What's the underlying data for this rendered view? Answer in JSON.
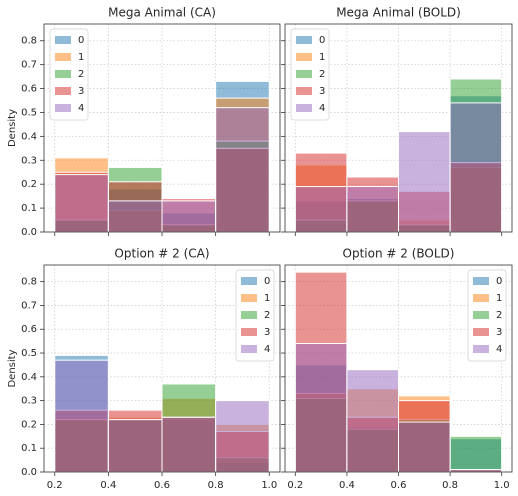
{
  "chart_data": [
    {
      "type": "histogram",
      "title": "Mega Animal (CA)",
      "ylabel": "Density",
      "bins": [
        0.2,
        0.4,
        0.6,
        0.8,
        {
          "value": 1,
          "label": "1.0"
        }
      ],
      "xlim": [
        0.16,
        1.04
      ],
      "ylim": [
        0,
        0.87
      ],
      "xticks": [
        0.2,
        0.4,
        0.6,
        0.8,
        1
      ],
      "yticks": [
        {
          "value": 0,
          "label": "0.0"
        },
        0.1,
        0.2,
        0.3,
        0.4,
        0.5,
        0.6,
        0.7,
        0.8
      ],
      "grid": true,
      "legend": "upper left",
      "series": [
        {
          "name": "0",
          "color": "#1f77b4",
          "values": [
            0.05,
            0.18,
            0.08,
            0.63
          ]
        },
        {
          "name": "1",
          "color": "#ff7f0e",
          "values": [
            0.31,
            0.09,
            0.03,
            0.56
          ]
        },
        {
          "name": "2",
          "color": "#2ca02c",
          "values": [
            0.05,
            0.27,
            0.03,
            0.38
          ]
        },
        {
          "name": "3",
          "color": "#d62728",
          "values": [
            0.25,
            0.21,
            0.14,
            0.35
          ]
        },
        {
          "name": "4",
          "color": "#9467bd",
          "values": [
            0.24,
            0.13,
            0.13,
            0.52
          ]
        }
      ]
    },
    {
      "type": "histogram",
      "title": "Mega Animal (BOLD)",
      "bins": [
        0.2,
        0.4,
        0.6,
        0.8,
        {
          "value": 1,
          "label": "1.0"
        }
      ],
      "xlim": [
        0.16,
        1.04
      ],
      "ylim": [
        0,
        0.87
      ],
      "xticks": [
        0.2,
        0.4,
        0.6,
        0.8,
        1
      ],
      "yticks": [
        0,
        0.1,
        0.2,
        0.3,
        0.4,
        0.5,
        0.6,
        0.7,
        0.8
      ],
      "grid": true,
      "legend": "upper left",
      "series": [
        {
          "name": "0",
          "color": "#1f77b4",
          "values": [
            0.13,
            0.14,
            0.03,
            0.57
          ]
        },
        {
          "name": "1",
          "color": "#ff7f0e",
          "values": [
            0.28,
            0.13,
            0.05,
            0.27
          ]
        },
        {
          "name": "2",
          "color": "#2ca02c",
          "values": [
            0.05,
            0.13,
            0.03,
            0.64
          ]
        },
        {
          "name": "3",
          "color": "#d62728",
          "values": [
            0.33,
            0.23,
            0.17,
            0.29
          ]
        },
        {
          "name": "4",
          "color": "#9467bd",
          "values": [
            0.19,
            0.19,
            0.42,
            0.54
          ]
        }
      ]
    },
    {
      "type": "histogram",
      "title": "Option # 2 (CA)",
      "ylabel": "Density",
      "bins": [
        0.2,
        0.4,
        0.6,
        0.8,
        {
          "value": 1,
          "label": "1.0"
        }
      ],
      "xlim": [
        0.16,
        1.04
      ],
      "ylim": [
        0,
        0.87
      ],
      "xticks": [
        0.2,
        0.4,
        0.6,
        0.8,
        {
          "value": 1,
          "label": "1.0"
        }
      ],
      "yticks": [
        {
          "value": 0,
          "label": "0.0"
        },
        0.1,
        0.2,
        0.3,
        0.4,
        0.5,
        0.6,
        0.7,
        0.8
      ],
      "grid": true,
      "legend": "upper right",
      "series": [
        {
          "name": "0",
          "color": "#1f77b4",
          "values": [
            0.49,
            0.22,
            0.22,
            0.04
          ]
        },
        {
          "name": "1",
          "color": "#ff7f0e",
          "values": [
            0.22,
            0.23,
            0.31,
            0.2
          ]
        },
        {
          "name": "2",
          "color": "#2ca02c",
          "values": [
            0.22,
            0.22,
            0.37,
            0.06
          ]
        },
        {
          "name": "3",
          "color": "#d62728",
          "values": [
            0.26,
            0.26,
            0.23,
            0.17
          ]
        },
        {
          "name": "4",
          "color": "#9467bd",
          "values": [
            0.47,
            0.22,
            0.23,
            0.3
          ]
        }
      ]
    },
    {
      "type": "histogram",
      "title": "Option # 2 (BOLD)",
      "bins": [
        0.2,
        0.4,
        0.6,
        0.8,
        {
          "value": 1,
          "label": "1.0"
        }
      ],
      "xlim": [
        0.16,
        1.04
      ],
      "ylim": [
        0,
        0.87
      ],
      "xticks": [
        0.2,
        0.4,
        0.6,
        0.8,
        {
          "value": 1,
          "label": "1.0"
        }
      ],
      "yticks": [
        0,
        0.1,
        0.2,
        0.3,
        0.4,
        0.5,
        0.6,
        0.7,
        0.8
      ],
      "grid": true,
      "legend": "upper right",
      "series": [
        {
          "name": "0",
          "color": "#1f77b4",
          "values": [
            0.45,
            0.19,
            0.21,
            0.14
          ]
        },
        {
          "name": "1",
          "color": "#ff7f0e",
          "values": [
            0.33,
            0.35,
            0.32,
            0.01
          ]
        },
        {
          "name": "2",
          "color": "#2ca02c",
          "values": [
            0.31,
            0.18,
            0.22,
            0.15
          ]
        },
        {
          "name": "3",
          "color": "#d62728",
          "values": [
            0.84,
            0.23,
            0.3,
            0.01
          ]
        },
        {
          "name": "4",
          "color": "#9467bd",
          "values": [
            0.54,
            0.43,
            0.21,
            0.01
          ]
        }
      ]
    }
  ]
}
